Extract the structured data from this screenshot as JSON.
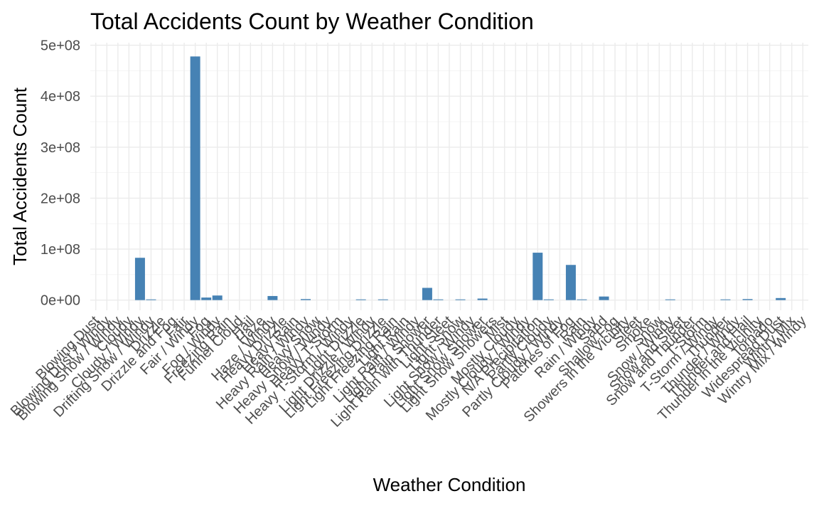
{
  "chart_data": {
    "type": "bar",
    "title": "Total Accidents Count by Weather Condition",
    "xlabel": "Weather Condition",
    "ylabel": "Total Accidents Count",
    "ylim": [
      -20000000,
      505000000
    ],
    "yticks": [
      0,
      100000000,
      200000000,
      300000000,
      400000000,
      500000000
    ],
    "ytick_labels": [
      "0e+00",
      "1e+08",
      "2e+08",
      "3e+08",
      "4e+08",
      "5e+08"
    ],
    "grid": true,
    "legend": "none",
    "bar_color": "#4682B4",
    "categories": [
      "Blowing Dust",
      "Blowing Dust / Windy",
      "Blowing Snow / Windy",
      "Cloudy",
      "Cloudy / Windy",
      "Drifting Snow / Windy",
      "Drizzle",
      "Drizzle and Fog",
      "Fair",
      "Fair / Windy",
      "Fog",
      "Fog / Windy",
      "Freezing Rain",
      "Funnel Cloud",
      "Hail",
      "Haze",
      "Haze / Windy",
      "Heavy Drizzle",
      "Heavy Rain",
      "Heavy Rain / Windy",
      "Heavy Snow",
      "Heavy Snow / Windy",
      "Heavy T-Storm",
      "Heavy T-Storm / Windy",
      "Light Drizzle",
      "Light Drizzle / Windy",
      "Light Freezing Drizzle",
      "Light Freezing Rain",
      "Light Rain",
      "Light Rain / Windy",
      "Light Rain Shower",
      "Light Rain with Thunder",
      "Light Sleet",
      "Light Snow",
      "Light Snow / Windy",
      "Light Snow Shower",
      "Light Snow Showers",
      "Mist",
      "Mostly Cloudy",
      "Mostly Cloudy / Windy",
      "N/A Precipitation",
      "Partly Cloudy",
      "Partly Cloudy / Windy",
      "Patches of Fog",
      "Rain",
      "Rain / Windy",
      "Sand",
      "Shallow Fog",
      "Showers in the Vicinity",
      "Sleet",
      "Smoke",
      "Snow",
      "Snow / Windy",
      "Snow and Sleet",
      "Snow and Thunder",
      "T-Storm",
      "T-Storm / Windy",
      "Thunder",
      "Thunder / Windy",
      "Thunder and Hail",
      "Thunder in the Vicinity",
      "Tornado",
      "Widespread Dust",
      "Wintry Mix",
      "Wintry Mix / Windy"
    ],
    "values": [
      0,
      0,
      0,
      0,
      83000000,
      600000,
      0,
      0,
      0,
      478000000,
      5000000,
      9000000,
      0,
      0,
      0,
      0,
      8000000,
      0,
      0,
      2000000,
      0,
      0,
      0,
      0,
      800000,
      0,
      800000,
      0,
      0,
      0,
      24000000,
      500000,
      0,
      600000,
      0,
      3000000,
      0,
      0,
      0,
      0,
      93000000,
      700000,
      0,
      69000000,
      900000,
      0,
      7000000,
      0,
      0,
      0,
      0,
      0,
      600000,
      0,
      0,
      0,
      0,
      700000,
      0,
      2000000,
      0,
      0,
      4000000,
      0,
      0
    ]
  }
}
